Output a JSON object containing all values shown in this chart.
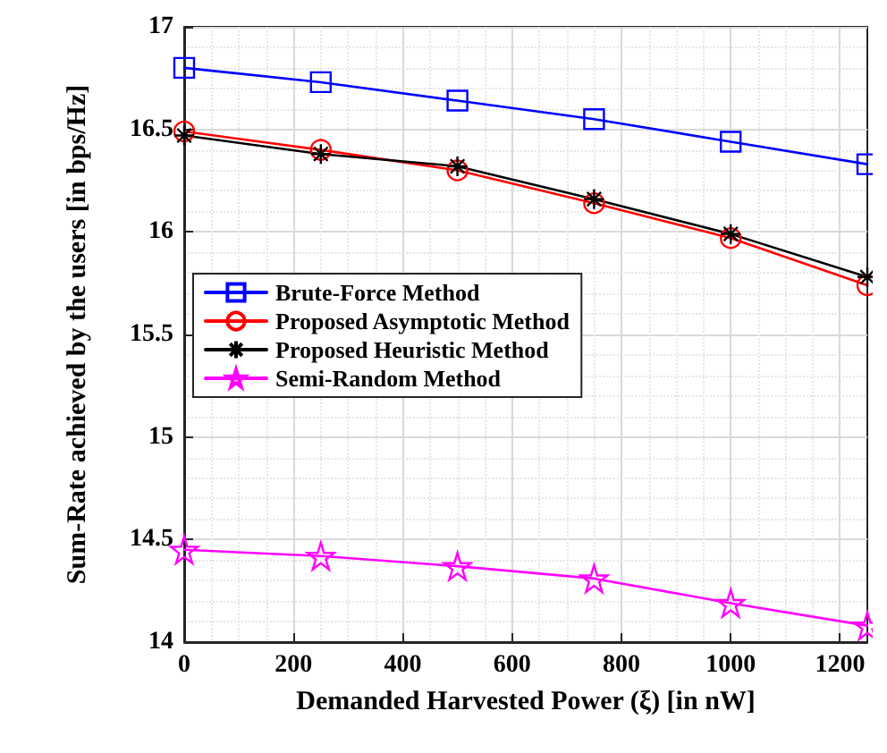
{
  "chart_data": {
    "type": "line",
    "xlabel": "Demanded Harvested Power (ξ) [in nW]",
    "ylabel": "Sum-Rate achieved by the users [in bps/Hz]",
    "x": [
      0,
      250,
      500,
      750,
      1000,
      1250
    ],
    "series": [
      {
        "name": "Brute-Force Method",
        "color": "#0000ff",
        "marker": "square",
        "values": [
          16.8,
          16.73,
          16.64,
          16.55,
          16.44,
          16.33
        ]
      },
      {
        "name": "Proposed Asymptotic Method",
        "color": "#ff0000",
        "marker": "circle",
        "values": [
          16.49,
          16.4,
          16.3,
          16.14,
          15.97,
          15.74
        ]
      },
      {
        "name": "Proposed Heuristic Method",
        "color": "#000000",
        "marker": "cross",
        "values": [
          16.47,
          16.38,
          16.32,
          16.16,
          15.99,
          15.78
        ]
      },
      {
        "name": "Semi-Random Method",
        "color": "#ff00ff",
        "marker": "star",
        "values": [
          14.45,
          14.42,
          14.37,
          14.31,
          14.19,
          14.08
        ]
      }
    ],
    "xlim": [
      0,
      1250
    ],
    "xticks": [
      0,
      200,
      400,
      600,
      800,
      1000,
      1200
    ],
    "ylim": [
      14,
      17
    ],
    "yticks": [
      14,
      14.5,
      15,
      15.5,
      16,
      16.5,
      17
    ],
    "grid": true,
    "legend": "left",
    "line_style": "solid"
  }
}
